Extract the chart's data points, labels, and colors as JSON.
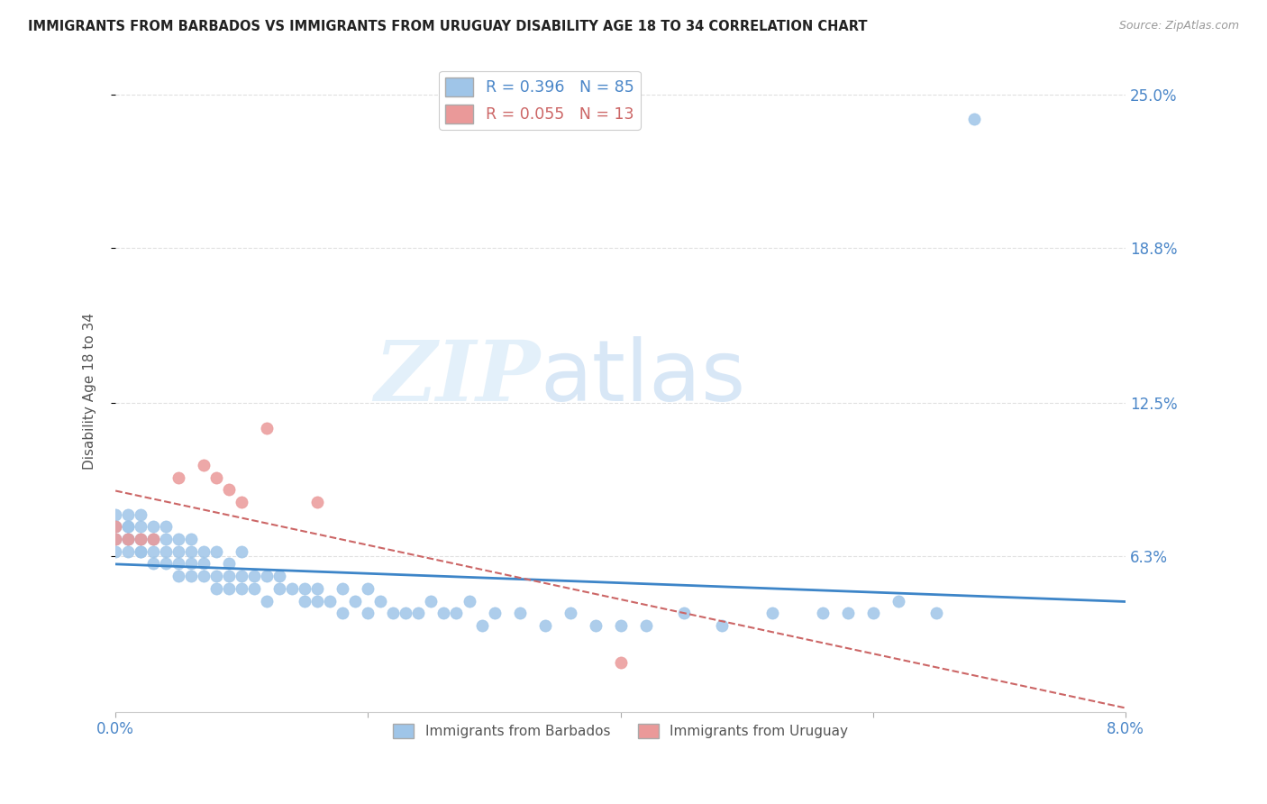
{
  "title": "IMMIGRANTS FROM BARBADOS VS IMMIGRANTS FROM URUGUAY DISABILITY AGE 18 TO 34 CORRELATION CHART",
  "source": "Source: ZipAtlas.com",
  "ylabel": "Disability Age 18 to 34",
  "xlim": [
    0.0,
    0.08
  ],
  "ylim": [
    0.0,
    0.26
  ],
  "ytick_vals": [
    0.063,
    0.125,
    0.188,
    0.25
  ],
  "ytick_labels": [
    "6.3%",
    "12.5%",
    "18.8%",
    "25.0%"
  ],
  "xtick_vals": [
    0.0,
    0.02,
    0.04,
    0.06,
    0.08
  ],
  "xtick_labels": [
    "0.0%",
    "",
    "",
    "",
    "8.0%"
  ],
  "watermark_zip": "ZIP",
  "watermark_atlas": "atlas",
  "R_barbados": 0.396,
  "N_barbados": 85,
  "R_uruguay": 0.055,
  "N_uruguay": 13,
  "color_barbados": "#9fc5e8",
  "color_uruguay": "#ea9999",
  "trendline_barbados_color": "#3d85c8",
  "trendline_uruguay_color": "#cc6666",
  "background_color": "#ffffff",
  "grid_color": "#e0e0e0",
  "barbados_x": [
    0.0,
    0.0,
    0.0,
    0.0,
    0.001,
    0.001,
    0.001,
    0.001,
    0.001,
    0.001,
    0.002,
    0.002,
    0.002,
    0.002,
    0.002,
    0.003,
    0.003,
    0.003,
    0.003,
    0.004,
    0.004,
    0.004,
    0.004,
    0.005,
    0.005,
    0.005,
    0.005,
    0.006,
    0.006,
    0.006,
    0.006,
    0.007,
    0.007,
    0.007,
    0.008,
    0.008,
    0.008,
    0.009,
    0.009,
    0.009,
    0.01,
    0.01,
    0.01,
    0.011,
    0.011,
    0.012,
    0.012,
    0.013,
    0.013,
    0.014,
    0.015,
    0.015,
    0.016,
    0.016,
    0.017,
    0.018,
    0.018,
    0.019,
    0.02,
    0.02,
    0.021,
    0.022,
    0.023,
    0.024,
    0.025,
    0.026,
    0.027,
    0.028,
    0.029,
    0.03,
    0.032,
    0.034,
    0.036,
    0.038,
    0.04,
    0.042,
    0.045,
    0.048,
    0.052,
    0.056,
    0.058,
    0.06,
    0.062,
    0.065,
    0.068
  ],
  "barbados_y": [
    0.07,
    0.075,
    0.08,
    0.065,
    0.07,
    0.075,
    0.065,
    0.08,
    0.07,
    0.075,
    0.065,
    0.07,
    0.075,
    0.065,
    0.08,
    0.065,
    0.07,
    0.06,
    0.075,
    0.065,
    0.07,
    0.075,
    0.06,
    0.055,
    0.065,
    0.07,
    0.06,
    0.055,
    0.065,
    0.07,
    0.06,
    0.055,
    0.065,
    0.06,
    0.05,
    0.055,
    0.065,
    0.05,
    0.055,
    0.06,
    0.05,
    0.055,
    0.065,
    0.05,
    0.055,
    0.045,
    0.055,
    0.05,
    0.055,
    0.05,
    0.045,
    0.05,
    0.045,
    0.05,
    0.045,
    0.04,
    0.05,
    0.045,
    0.04,
    0.05,
    0.045,
    0.04,
    0.04,
    0.04,
    0.045,
    0.04,
    0.04,
    0.045,
    0.035,
    0.04,
    0.04,
    0.035,
    0.04,
    0.035,
    0.035,
    0.035,
    0.04,
    0.035,
    0.04,
    0.04,
    0.04,
    0.04,
    0.045,
    0.04,
    0.24
  ],
  "uruguay_x": [
    0.0,
    0.0,
    0.001,
    0.002,
    0.003,
    0.005,
    0.007,
    0.008,
    0.009,
    0.01,
    0.012,
    0.016,
    0.04
  ],
  "uruguay_y": [
    0.07,
    0.075,
    0.07,
    0.07,
    0.07,
    0.095,
    0.1,
    0.095,
    0.09,
    0.085,
    0.115,
    0.085,
    0.02
  ],
  "label_barbados": "Immigrants from Barbados",
  "label_uruguay": "Immigrants from Uruguay"
}
